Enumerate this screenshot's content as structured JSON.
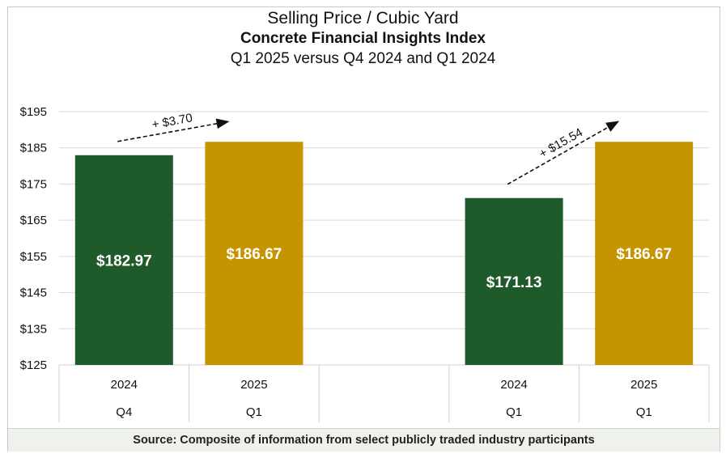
{
  "chart_data": {
    "type": "bar",
    "title": "Selling Price / Cubic Yard",
    "subtitle": "Concrete Financial Insights Index",
    "subtitle2": "Q1 2025 versus Q4 2024 and Q1 2024",
    "ylim": [
      125,
      195
    ],
    "yticks": [
      "$125",
      "$135",
      "$145",
      "$155",
      "$165",
      "$175",
      "$185",
      "$195"
    ],
    "ytick_values": [
      125,
      135,
      145,
      155,
      165,
      175,
      185,
      195
    ],
    "grid": true,
    "categories": [
      {
        "year": "2024",
        "quarter": "Q4"
      },
      {
        "year": "2025",
        "quarter": "Q1"
      },
      {
        "year": "",
        "quarter": ""
      },
      {
        "year": "2024",
        "quarter": "Q1"
      },
      {
        "year": "2025",
        "quarter": "Q1"
      }
    ],
    "bars": [
      {
        "value": 182.97,
        "label": "$182.97",
        "color": "#1f5a2a",
        "slot": 0
      },
      {
        "value": 186.67,
        "label": "$186.67",
        "color": "#c59400",
        "slot": 1
      },
      {
        "value": 171.13,
        "label": "$171.13",
        "color": "#1f5a2a",
        "slot": 3
      },
      {
        "value": 186.67,
        "label": "$186.67",
        "color": "#c59400",
        "slot": 4
      }
    ],
    "annotations": [
      {
        "text": "+ $3.70",
        "from_slot": 0,
        "to_slot": 1
      },
      {
        "text": "+ $15.54",
        "from_slot": 3,
        "to_slot": 4
      }
    ]
  },
  "source": "Source: Composite of information from select publicly traded industry participants"
}
